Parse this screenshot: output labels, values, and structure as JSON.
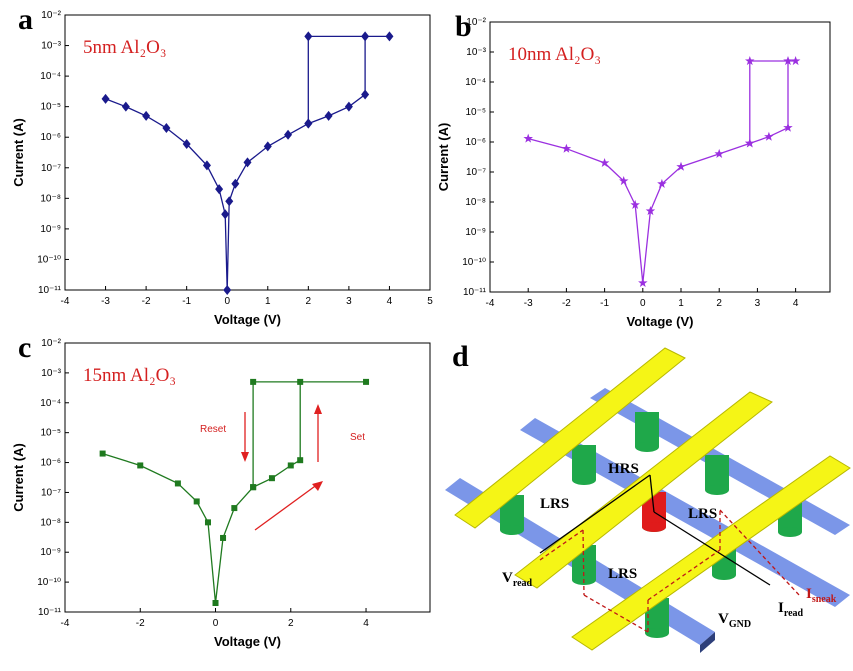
{
  "chart_data": [
    {
      "type": "line",
      "panel_label": "a",
      "annotation": "5nm Al₂O₃",
      "x_label": "Voltage (V)",
      "y_label": "Current (A)",
      "log_y": true,
      "marker": "diamond",
      "xlim": [
        -4,
        5
      ],
      "xticks": [
        -4,
        -3,
        -2,
        -1,
        0,
        1,
        2,
        3,
        4,
        5
      ],
      "ylim": [
        1e-11,
        0.01
      ],
      "yticks": [
        {
          "value": 1e-11,
          "label": "10⁻¹¹"
        },
        {
          "value": 1e-10,
          "label": "10⁻¹⁰"
        },
        {
          "value": 1e-09,
          "label": "10⁻⁹"
        },
        {
          "value": 1e-08,
          "label": "10⁻⁸"
        },
        {
          "value": 1e-07,
          "label": "10⁻⁷"
        },
        {
          "value": 1e-06,
          "label": "10⁻⁶"
        },
        {
          "value": 1e-05,
          "label": "10⁻⁵"
        },
        {
          "value": 0.0001,
          "label": "10⁻⁴"
        },
        {
          "value": 0.001,
          "label": "10⁻³"
        },
        {
          "value": 0.01,
          "label": "10⁻²"
        }
      ],
      "series": [
        {
          "color": "#1a1a8c",
          "x": [
            -3,
            -2.5,
            -2,
            -1.5,
            -1,
            -0.5,
            -0.2,
            -0.05,
            0,
            0.05,
            0.2,
            0.5,
            1,
            1.5,
            2,
            2.5,
            3,
            3.4,
            3.4,
            4,
            2,
            2
          ],
          "values": [
            1.8e-05,
            1e-05,
            5e-06,
            2e-06,
            6e-07,
            1.2e-07,
            2e-08,
            3e-09,
            1e-11,
            8e-09,
            3e-08,
            1.5e-07,
            5e-07,
            1.2e-06,
            2.8e-06,
            5e-06,
            1e-05,
            2.5e-05,
            0.002,
            0.002,
            0.002,
            2.8e-06
          ]
        }
      ]
    },
    {
      "type": "line",
      "panel_label": "b",
      "annotation": "10nm Al₂O₃",
      "x_label": "Voltage (V)",
      "y_label": "Current (A)",
      "log_y": true,
      "marker": "star",
      "xlim": [
        -4,
        4.9
      ],
      "xticks": [
        -4,
        -3,
        -2,
        -1,
        0,
        1,
        2,
        3,
        4
      ],
      "ylim": [
        1e-11,
        0.01
      ],
      "yticks": [
        {
          "value": 1e-11,
          "label": "10⁻¹¹"
        },
        {
          "value": 1e-10,
          "label": "10⁻¹⁰"
        },
        {
          "value": 1e-09,
          "label": "10⁻⁹"
        },
        {
          "value": 1e-08,
          "label": "10⁻⁸"
        },
        {
          "value": 1e-07,
          "label": "10⁻⁷"
        },
        {
          "value": 1e-06,
          "label": "10⁻⁶"
        },
        {
          "value": 1e-05,
          "label": "10⁻⁵"
        },
        {
          "value": 0.0001,
          "label": "10⁻⁴"
        },
        {
          "value": 0.001,
          "label": "10⁻³"
        },
        {
          "value": 0.01,
          "label": "10⁻²"
        }
      ],
      "series": [
        {
          "color": "#9b30e0",
          "x": [
            -3,
            -2,
            -1,
            -0.5,
            -0.2,
            0,
            0.2,
            0.5,
            1,
            2,
            2.8,
            3.3,
            3.8,
            3.8,
            4,
            2.8,
            2.8
          ],
          "values": [
            1.3e-06,
            6e-07,
            2e-07,
            5e-08,
            8e-09,
            2e-11,
            5e-09,
            4e-08,
            1.5e-07,
            4e-07,
            9e-07,
            1.5e-06,
            3e-06,
            0.0005,
            0.0005,
            0.0005,
            9e-07
          ]
        }
      ]
    },
    {
      "type": "line",
      "panel_label": "c",
      "annotation": "15nm Al₂O₃",
      "x_label": "Voltage (V)",
      "y_label": "Current (A)",
      "log_y": true,
      "marker": "square",
      "arrow_labels": [
        "Reset",
        "Set"
      ],
      "xlim": [
        -4,
        5.7
      ],
      "xticks": [
        -4,
        -2,
        0,
        2,
        4
      ],
      "ylim": [
        1e-11,
        0.01
      ],
      "yticks": [
        {
          "value": 1e-11,
          "label": "10⁻¹¹"
        },
        {
          "value": 1e-10,
          "label": "10⁻¹⁰"
        },
        {
          "value": 1e-09,
          "label": "10⁻⁹"
        },
        {
          "value": 1e-08,
          "label": "10⁻⁸"
        },
        {
          "value": 1e-07,
          "label": "10⁻⁷"
        },
        {
          "value": 1e-06,
          "label": "10⁻⁶"
        },
        {
          "value": 1e-05,
          "label": "10⁻⁵"
        },
        {
          "value": 0.0001,
          "label": "10⁻⁴"
        },
        {
          "value": 0.001,
          "label": "10⁻³"
        },
        {
          "value": 0.01,
          "label": "10⁻²"
        }
      ],
      "series": [
        {
          "color": "#1f7a1f",
          "x": [
            -3,
            -2,
            -1,
            -0.5,
            -0.2,
            0,
            0.2,
            0.5,
            1,
            1.5,
            2,
            2.25,
            2.25,
            4,
            1,
            1
          ],
          "values": [
            2e-06,
            8e-07,
            2e-07,
            5e-08,
            1e-08,
            2e-11,
            3e-09,
            3e-08,
            1.5e-07,
            3e-07,
            8e-07,
            1.2e-06,
            0.0005,
            0.0005,
            0.0005,
            1.5e-07
          ]
        }
      ]
    }
  ],
  "diagram": {
    "panel_label": "d",
    "hrs": "HRS",
    "lrs": [
      "LRS",
      "LRS",
      "LRS"
    ],
    "v_read": {
      "main": "V",
      "sub": "read"
    },
    "v_gnd": {
      "main": "V",
      "sub": "GND"
    },
    "i_read": {
      "main": "I",
      "sub": "read"
    },
    "i_sneak": {
      "main": "I",
      "sub": "sneak"
    }
  }
}
